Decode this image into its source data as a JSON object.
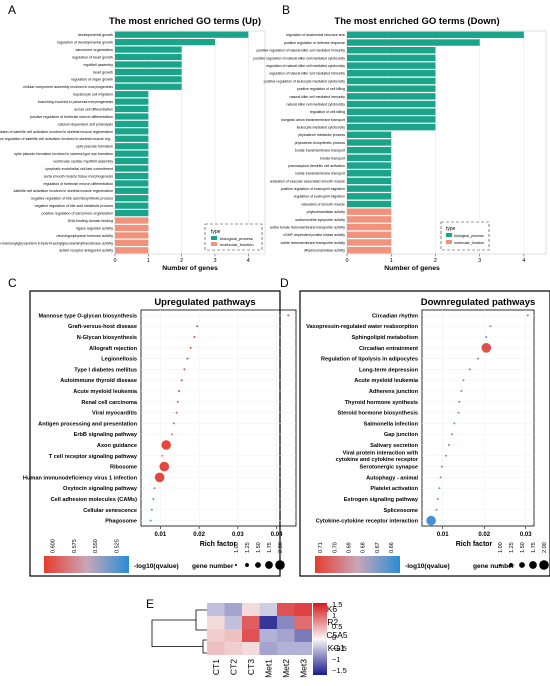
{
  "panel_labels": {
    "a": "A",
    "b": "B",
    "c": "C",
    "d": "D",
    "e": "E"
  },
  "colors": {
    "bio": "#1aa58b",
    "mol": "#f1927c",
    "sev_high": "#e63c2f",
    "sev_low": "#2a8dd6"
  },
  "chart_data": [
    {
      "type": "bar",
      "title": "The most enriched GO terms (Up)",
      "xlabel": "Number of genes",
      "xlim": [
        0,
        4.5
      ],
      "xticks": [
        0,
        1,
        2,
        3,
        4
      ],
      "legend_title": "type",
      "legend_items": [
        "biological_process",
        "molecular_function"
      ],
      "legend_position": "bottom-right",
      "categories": [
        "developmental growth",
        "regulation of developmental growth",
        "sarcomere organization",
        "regulation of heart growth",
        "myofibril assembly",
        "heart growth",
        "regulation of organ growth",
        "cellular component assembly involved in morphogenesis",
        "hepatocyte cell migration",
        "branching involved in pancreas morphogenesis",
        "acinar cell differentiation",
        "positive regulation of forebrain neuron differentiation",
        "calcium-dependent self proteolysis",
        "regulation of satellite cell activation involved in skeletal muscle regeneration",
        "positive regulation of satellite cell activation involved in skeletal muscle reg...",
        "optic placode formation",
        "optic placode formation involved in camera-type eye formation",
        "ventricular cardiac myofibril assembly",
        "lymphatic endothelial cell fate commitment",
        "aorta smooth muscle tissue morphogenesis",
        "regulation of forebrain neuron differentiation",
        "satellite cell activation involved in skeletal muscle regeneration",
        "negative regulation of bile acid biosynthetic process",
        "negative regulation of bile acid metabolic process",
        "positive regulation of sarcomere organization",
        "DNA binding domain binding",
        "ligase regulator activity",
        "neurohypophyseal hormone activity",
        "alpha-1,6-mannosylglycoprotein 6-beta-N-acetylglucosaminyltransferase activity",
        "activin receptor antagonist activity"
      ],
      "values": [
        4,
        3,
        2,
        2,
        2,
        2,
        2,
        2,
        1,
        1,
        1,
        1,
        1,
        1,
        1,
        1,
        1,
        1,
        1,
        1,
        1,
        1,
        1,
        1,
        1,
        1,
        1,
        1,
        1,
        1
      ],
      "types": [
        "biological_process",
        "biological_process",
        "biological_process",
        "biological_process",
        "biological_process",
        "biological_process",
        "biological_process",
        "biological_process",
        "biological_process",
        "biological_process",
        "biological_process",
        "biological_process",
        "biological_process",
        "biological_process",
        "biological_process",
        "biological_process",
        "biological_process",
        "biological_process",
        "biological_process",
        "biological_process",
        "biological_process",
        "biological_process",
        "biological_process",
        "biological_process",
        "biological_process",
        "molecular_function",
        "molecular_function",
        "molecular_function",
        "molecular_function",
        "molecular_function"
      ]
    },
    {
      "type": "bar",
      "title": "The most enriched GO terms (Down)",
      "xlabel": "Number of genes",
      "xlim": [
        0,
        4.5
      ],
      "xticks": [
        0,
        1,
        2,
        3,
        4
      ],
      "legend_title": "type",
      "legend_items": [
        "biological_process",
        "molecular_function"
      ],
      "legend_position": "bottom-right",
      "categories": [
        "regulation of anatomical structure size",
        "positive regulation of defense response",
        "positive regulation of natural killer cell mediated immunity",
        "positive regulation of natural killer cell mediated cytotoxicity",
        "regulation of natural killer cell mediated cytotoxicity",
        "regulation of natural killer cell mediated immunity",
        "positive regulation of leukocyte mediated cytotoxicity",
        "positive regulation of cell killing",
        "natural killer cell mediated immunity",
        "natural killer cell mediated cytotoxicity",
        "regulation of cell killing",
        "inorganic anion transmembrane transport",
        "leukocyte mediated cytotoxicity",
        "phytoalexin metabolic process",
        "phytoalexin biosynthetic process",
        "borate transmembrane transport",
        "borate transport",
        "plasmacytoid dendritic cell activation",
        "iodide transmembrane transport",
        "relaxation of vascular associated smooth muscle",
        "positive regulation of eosinophil migration",
        "regulation of eosinophil migration",
        "relaxation of smooth muscle",
        "phytoceramidase activity",
        "sodium:iodide symporter activity",
        "active borate transmembrane transporter activity",
        "cGMP-dependent protein kinase activity",
        "iodide transmembrane transporter activity",
        "dihydroceramidase activity"
      ],
      "values": [
        4,
        3,
        2,
        2,
        2,
        2,
        2,
        2,
        2,
        2,
        2,
        2,
        2,
        1,
        1,
        1,
        1,
        1,
        1,
        1,
        1,
        1,
        1,
        1,
        1,
        1,
        1,
        1,
        1
      ],
      "types": [
        "biological_process",
        "biological_process",
        "biological_process",
        "biological_process",
        "biological_process",
        "biological_process",
        "biological_process",
        "biological_process",
        "biological_process",
        "biological_process",
        "biological_process",
        "biological_process",
        "biological_process",
        "biological_process",
        "biological_process",
        "biological_process",
        "biological_process",
        "biological_process",
        "biological_process",
        "biological_process",
        "biological_process",
        "biological_process",
        "biological_process",
        "molecular_function",
        "molecular_function",
        "molecular_function",
        "molecular_function",
        "molecular_function",
        "molecular_function"
      ]
    },
    {
      "type": "scatter",
      "title": "Upregulated pathways",
      "xlabel": "Rich factor",
      "xlim": [
        0.005,
        0.045
      ],
      "xticks": [
        0.01,
        0.02,
        0.03,
        0.04
      ],
      "xtick_labels": [
        "0.01",
        "0.02",
        "0.03",
        "0.04"
      ],
      "color_legend_title": "-log10(qvalue)",
      "color_ticks": [
        "0.600",
        "0.575",
        "0.550",
        "0.525"
      ],
      "color_range": [
        0.51,
        0.605
      ],
      "size_legend_title": "gene number",
      "size_ticks": [
        "1.00",
        "1.25",
        "1.50",
        "1.75",
        "2.00"
      ],
      "categories": [
        "Mannose type O-glycan biosynthesis",
        "Graft-versus-host disease",
        "N-Glycan biosynthesis",
        "Allograft rejection",
        "Legionellosis",
        "Type I diabetes mellitus",
        "Autoimmune thyroid disease",
        "Acute myeloid leukemia",
        "Renal cell carcinoma",
        "Viral myocarditis",
        "Antigen processing and presentation",
        "ErbB signaling pathway",
        "Axon guidance",
        "T cell receptor signaling pathway",
        "Ribosome",
        "Human immunodeficiency virus 1 infection",
        "Oxytocin signaling pathway",
        "Cell adhesion molecules (CAMs)",
        "Cellular senescence",
        "Phagosome"
      ],
      "x": [
        0.043,
        0.0195,
        0.0188,
        0.0178,
        0.017,
        0.0162,
        0.0155,
        0.0148,
        0.0145,
        0.0142,
        0.0135,
        0.013,
        0.0115,
        0.0105,
        0.011,
        0.0098,
        0.0085,
        0.0082,
        0.0078,
        0.0075
      ],
      "gene_number": [
        1,
        1,
        1,
        1,
        1,
        1,
        1,
        1,
        1,
        1,
        1,
        1,
        2,
        1,
        2,
        2,
        1,
        1,
        1,
        1
      ],
      "qvalue_log": [
        0.6,
        0.6,
        0.6,
        0.6,
        0.6,
        0.6,
        0.6,
        0.6,
        0.59,
        0.59,
        0.59,
        0.58,
        0.6,
        0.57,
        0.6,
        0.6,
        0.53,
        0.52,
        0.52,
        0.52
      ]
    },
    {
      "type": "scatter",
      "title": "Downregulated pathways",
      "xlabel": "Rich factor",
      "xlim": [
        0.005,
        0.032
      ],
      "xticks": [
        0.01,
        0.02,
        0.03
      ],
      "xtick_labels": [
        "0.01",
        "0.02",
        "0.03"
      ],
      "color_legend_title": "-log10(qvalue)",
      "color_ticks": [
        "0.71",
        "0.70",
        "0.69",
        "0.68",
        "0.67",
        "0.66"
      ],
      "color_range": [
        0.655,
        0.715
      ],
      "size_legend_title": "gene number",
      "size_ticks": [
        "1.00",
        "1.25",
        "1.50",
        "1.75",
        "2.00"
      ],
      "categories": [
        "Circadian rhythm",
        "Vasopressin-regulated water reabsorption",
        "Sphingolipid metabolism",
        "Circadian entrainment",
        "Regulation of lipolysis in adipocytes",
        "Long-term depression",
        "Acute myeloid leukemia",
        "Adherens junction",
        "Thyroid hormone synthesis",
        "Steroid hormone biosynthesis",
        "Salmonella infection",
        "Gap junction",
        "Salivary secretion",
        "Viral protein interaction with cytokine and cytokine receptor",
        "Serotonergic synapse",
        "Autophagy - animal",
        "Platelet activation",
        "Estrogen signaling pathway",
        "Spliceosome",
        "Cytokine-cytokine receptor interaction"
      ],
      "x": [
        0.0305,
        0.0215,
        0.0205,
        0.0205,
        0.0185,
        0.0165,
        0.015,
        0.0145,
        0.014,
        0.0138,
        0.0128,
        0.0122,
        0.0115,
        0.0108,
        0.0098,
        0.0095,
        0.0092,
        0.0088,
        0.0085,
        0.0072
      ],
      "gene_number": [
        1,
        1,
        1,
        2,
        1,
        1,
        1,
        1,
        1,
        1,
        1,
        1,
        1,
        1,
        1,
        1,
        1,
        1,
        1,
        2
      ],
      "qvalue_log": [
        0.665,
        0.665,
        0.665,
        0.71,
        0.665,
        0.665,
        0.665,
        0.665,
        0.665,
        0.665,
        0.665,
        0.665,
        0.665,
        0.665,
        0.665,
        0.665,
        0.665,
        0.665,
        0.665,
        0.66
      ]
    },
    {
      "type": "heatmap",
      "columns": [
        "CT1",
        "CT2",
        "CT3",
        "Met1",
        "Met2",
        "Met3"
      ],
      "rows": [
        "PAK6",
        "PER2",
        "SLC5A5",
        "PRKG1"
      ],
      "values": [
        [
          -0.4,
          -0.6,
          0.2,
          -0.3,
          1.2,
          1.3
        ],
        [
          0.2,
          -0.4,
          1.1,
          -1.4,
          -0.8,
          1.0
        ],
        [
          0.3,
          0.4,
          1.2,
          -0.5,
          -0.6,
          -0.9
        ],
        [
          0.4,
          0.3,
          0.2,
          -0.6,
          -0.5,
          -0.5
        ]
      ],
      "color_range": [
        -1.6,
        1.6
      ],
      "colorbar_ticks": [
        "1.5",
        "1",
        "0.5",
        "0",
        "−0.5",
        "−1",
        "−1.5"
      ]
    }
  ]
}
